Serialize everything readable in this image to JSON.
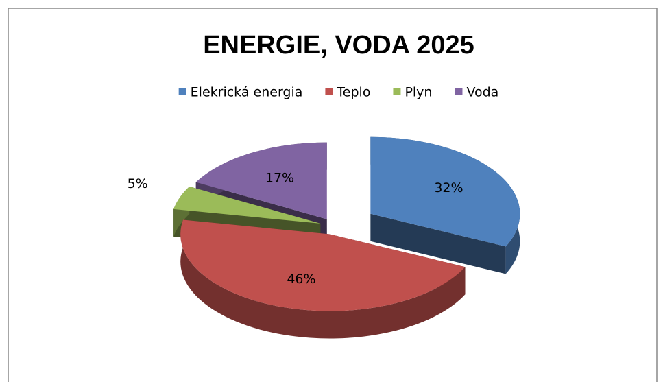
{
  "chart_data": {
    "type": "pie",
    "title": "ENERGIE, VODA 2025",
    "categories": [
      "Elekrická energia",
      "Teplo",
      "Plyn",
      "Voda"
    ],
    "values": [
      32,
      46,
      5,
      17
    ],
    "value_labels": [
      "32%",
      "46%",
      "5%",
      "17%"
    ],
    "colors": [
      "#4f81bd",
      "#c0504d",
      "#9bbb59",
      "#8064a2"
    ],
    "legend": "top"
  }
}
